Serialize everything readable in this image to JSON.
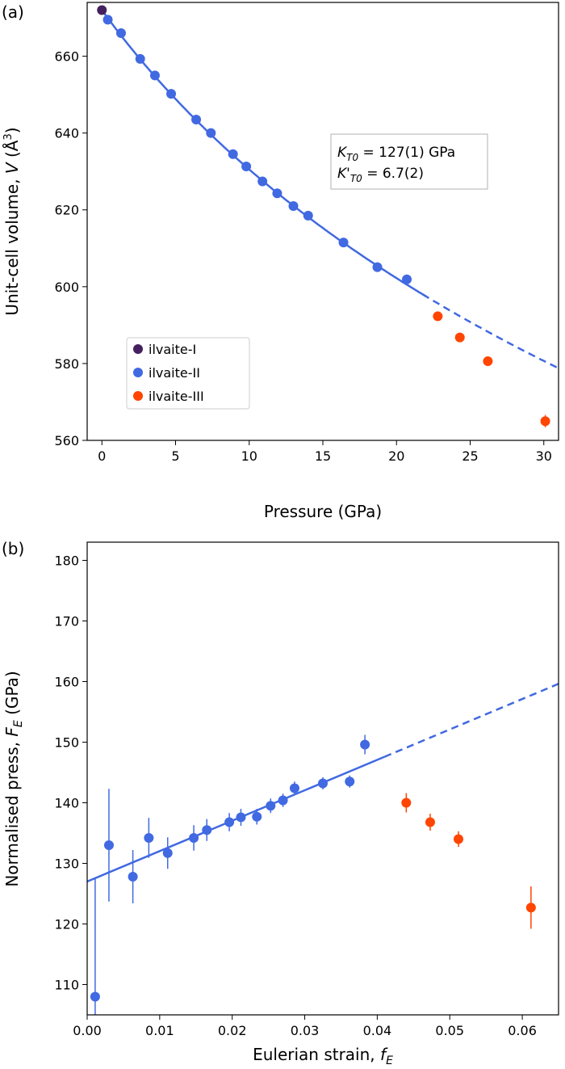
{
  "chart_data": [
    {
      "panel_label": "(a)",
      "type": "scatter",
      "xlabel": "Pressure (GPa)",
      "ylabel_parts": {
        "prefix": "Unit-cell volume, ",
        "var": "V",
        "unit_open": " (Å",
        "unit_sup": "3",
        "unit_close": ")"
      },
      "xlim": [
        -1,
        31
      ],
      "ylim": [
        560,
        674
      ],
      "xticks": [
        0,
        5,
        10,
        15,
        20,
        25,
        30
      ],
      "yticks": [
        560,
        580,
        600,
        620,
        640,
        660
      ],
      "grid": false,
      "legend_position": "lower-left",
      "annotation": {
        "line1": {
          "sym": "K",
          "sub": "T0",
          "rest": " = 127(1) GPa"
        },
        "line2": {
          "sym": "K'",
          "sub": "T0",
          "rest": " = 6.7(2)"
        }
      },
      "series": [
        {
          "name": "ilvaite-I",
          "color": "#45205e",
          "x": [
            0.0
          ],
          "y": [
            672.0
          ],
          "yerr": [
            0.6
          ]
        },
        {
          "name": "ilvaite-II",
          "color": "#4169e1",
          "x": [
            0.4,
            1.3,
            2.6,
            3.6,
            4.7,
            6.4,
            7.4,
            8.9,
            9.8,
            10.9,
            11.9,
            13.0,
            14.0,
            16.4,
            18.7,
            20.7
          ],
          "y": [
            669.5,
            666.0,
            659.3,
            655.0,
            650.2,
            643.5,
            640.0,
            634.5,
            631.3,
            627.4,
            624.3,
            621.0,
            618.5,
            611.5,
            605.1,
            601.9
          ],
          "yerr": [
            0.4,
            0.4,
            0.4,
            0.4,
            0.4,
            0.4,
            0.4,
            0.4,
            0.4,
            0.4,
            0.4,
            0.4,
            0.4,
            0.4,
            0.4,
            0.4
          ]
        },
        {
          "name": "ilvaite-III",
          "color": "#ff4500",
          "x": [
            22.8,
            24.3,
            26.2,
            30.1
          ],
          "y": [
            592.3,
            586.8,
            580.6,
            565.0
          ],
          "yerr": [
            0.5,
            0.5,
            0.6,
            1.6
          ]
        }
      ],
      "fit": {
        "color": "#4169e1",
        "model": "Birch-Murnaghan 3rd order",
        "V0": 672.0,
        "K0": 127,
        "Kp": 6.7,
        "solid_range": [
          0,
          22
        ],
        "dashed_range": [
          22,
          31
        ]
      }
    },
    {
      "panel_label": "(b)",
      "type": "scatter",
      "xlabel_parts": {
        "prefix": "Eulerian strain, ",
        "var": "f",
        "sub": "E"
      },
      "ylabel_parts": {
        "prefix": "Normalised press, ",
        "var": "F",
        "sub": "E",
        "suffix": " (GPa)"
      },
      "xlim": [
        0.0,
        0.065
      ],
      "ylim": [
        105,
        183
      ],
      "xticks": [
        0.0,
        0.01,
        0.02,
        0.03,
        0.04,
        0.05,
        0.06
      ],
      "xtick_labels": [
        "0.00",
        "0.01",
        "0.02",
        "0.03",
        "0.04",
        "0.05",
        "0.06"
      ],
      "yticks": [
        110,
        120,
        130,
        140,
        150,
        160,
        170,
        180
      ],
      "grid": false,
      "series": [
        {
          "name": "ilvaite-II",
          "color": "#4169e1",
          "x": [
            0.0011,
            0.003,
            0.0063,
            0.0085,
            0.0111,
            0.0147,
            0.0165,
            0.0196,
            0.0212,
            0.0234,
            0.0253,
            0.027,
            0.0286,
            0.0325,
            0.0362,
            0.0383
          ],
          "y": [
            108.0,
            133.0,
            127.8,
            134.2,
            131.7,
            134.2,
            135.5,
            136.8,
            137.6,
            137.7,
            139.5,
            140.4,
            142.4,
            143.2,
            143.5,
            149.6
          ],
          "yerr": [
            19.5,
            9.3,
            4.4,
            3.3,
            2.6,
            2.1,
            1.8,
            1.5,
            1.4,
            1.3,
            1.2,
            1.1,
            1.1,
            1.0,
            1.0,
            1.6
          ]
        },
        {
          "name": "ilvaite-III",
          "color": "#ff4500",
          "x": [
            0.044,
            0.0473,
            0.0512,
            0.0612
          ],
          "y": [
            140.0,
            136.8,
            134.0,
            122.7
          ],
          "yerr": [
            1.6,
            1.4,
            1.3,
            3.5
          ]
        }
      ],
      "fit": {
        "color": "#4169e1",
        "intercept": 127.0,
        "slope": 502.0,
        "solid_range": [
          0.0,
          0.041
        ],
        "dashed_range": [
          0.041,
          0.065
        ]
      }
    }
  ]
}
